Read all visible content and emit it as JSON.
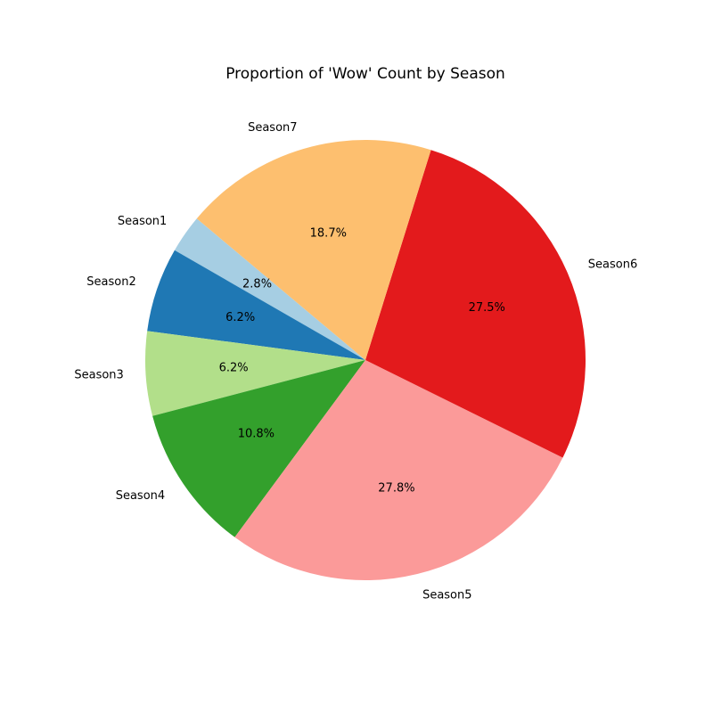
{
  "chart_data": {
    "type": "pie",
    "title": "Proportion of 'Wow' Count by Season",
    "slices": [
      {
        "label": "Season1",
        "value": 2.8,
        "pct_label": "2.8%",
        "color": "#a6cee3"
      },
      {
        "label": "Season2",
        "value": 6.2,
        "pct_label": "6.2%",
        "color": "#1f78b4"
      },
      {
        "label": "Season3",
        "value": 6.2,
        "pct_label": "6.2%",
        "color": "#b2df8a"
      },
      {
        "label": "Season4",
        "value": 10.8,
        "pct_label": "10.8%",
        "color": "#33a02c"
      },
      {
        "label": "Season5",
        "value": 27.8,
        "pct_label": "27.8%",
        "color": "#fb9a99"
      },
      {
        "label": "Season6",
        "value": 27.5,
        "pct_label": "27.5%",
        "color": "#e31a1c"
      },
      {
        "label": "Season7",
        "value": 18.7,
        "pct_label": "18.7%",
        "color": "#fdbf6f"
      }
    ],
    "start_angle_deg": 140,
    "direction": "counterclockwise"
  }
}
